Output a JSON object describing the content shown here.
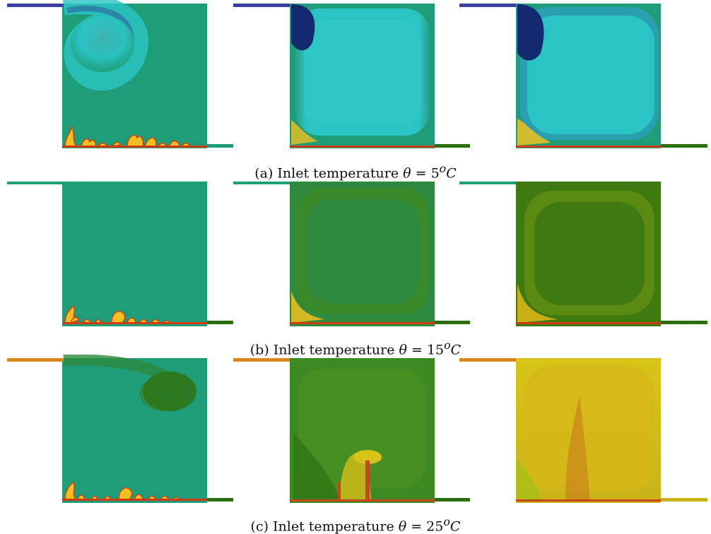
{
  "figure": {
    "rows": [
      {
        "id": "a",
        "caption_prefix": "(a) Inlet temperature",
        "caption_symbol": "θ",
        "caption_eq": " = 5",
        "caption_sup": "o",
        "caption_unit": "C",
        "colors": {
          "base": "#1e9e78",
          "inlet": "#3a3fa0",
          "cool": "#2bc4c4",
          "cold": "#142a6e",
          "warm": "#f0c020",
          "hot": "#d03a14",
          "edge": "#2a6e10"
        }
      },
      {
        "id": "b",
        "caption_prefix": "(b) Inlet temperature",
        "caption_symbol": "θ",
        "caption_eq": " = 15",
        "caption_sup": "o",
        "caption_unit": "C",
        "colors": {
          "base": "#1f9c78",
          "inlet": "#1f9c78",
          "mid": "#2e8a3e",
          "deep": "#3f7a10",
          "warm": "#f0c020",
          "hot": "#d03a14",
          "edge": "#2a6e10"
        }
      },
      {
        "id": "c",
        "caption_prefix": "(c) Inlet temperature",
        "caption_symbol": "θ",
        "caption_eq": " = 25",
        "caption_sup": "o",
        "caption_unit": "C",
        "colors": {
          "base": "#1f9c78",
          "inlet": "#d8881c",
          "mid": "#3e8a22",
          "deep": "#2e7414",
          "yellow": "#d8c418",
          "hot": "#c8441a",
          "edge": "#2a6e10"
        }
      }
    ]
  }
}
